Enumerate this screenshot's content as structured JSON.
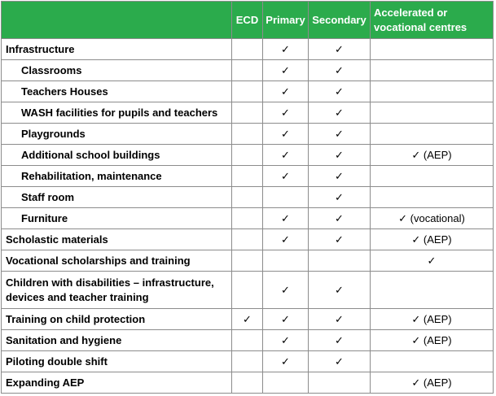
{
  "headers": {
    "blank": "",
    "ecd": "ECD",
    "primary": "Primary",
    "secondary": "Secondary",
    "accelerated": "Accelerated or vocational centres"
  },
  "rows": [
    {
      "label": "Infrastructure",
      "indent": false,
      "ecd": "",
      "primary": "✓",
      "secondary": "✓",
      "accelerated": ""
    },
    {
      "label": "Classrooms",
      "indent": true,
      "ecd": "",
      "primary": "✓",
      "secondary": "✓",
      "accelerated": ""
    },
    {
      "label": "Teachers Houses",
      "indent": true,
      "ecd": "",
      "primary": "✓",
      "secondary": "✓",
      "accelerated": ""
    },
    {
      "label": "WASH facilities for pupils and teachers",
      "indent": true,
      "ecd": "",
      "primary": "✓",
      "secondary": "✓",
      "accelerated": ""
    },
    {
      "label": "Playgrounds",
      "indent": true,
      "ecd": "",
      "primary": "✓",
      "secondary": "✓",
      "accelerated": ""
    },
    {
      "label": "Additional school buildings",
      "indent": true,
      "ecd": "",
      "primary": "✓",
      "secondary": "✓",
      "accelerated": "✓ (AEP)"
    },
    {
      "label": "Rehabilitation, maintenance",
      "indent": true,
      "ecd": "",
      "primary": "✓",
      "secondary": "✓",
      "accelerated": ""
    },
    {
      "label": "Staff room",
      "indent": true,
      "ecd": "",
      "primary": "",
      "secondary": "✓",
      "accelerated": ""
    },
    {
      "label": "Furniture",
      "indent": true,
      "ecd": "",
      "primary": "✓",
      "secondary": "✓",
      "accelerated": "✓ (vocational)"
    },
    {
      "label": "Scholastic materials",
      "indent": false,
      "ecd": "",
      "primary": "✓",
      "secondary": "✓",
      "accelerated": "✓ (AEP)"
    },
    {
      "label": "Vocational scholarships and training",
      "indent": false,
      "ecd": "",
      "primary": "",
      "secondary": "",
      "accelerated": "✓"
    },
    {
      "label": "Children with disabilities – infrastructure, devices and teacher training",
      "indent": false,
      "tall": true,
      "ecd": "",
      "primary": "✓",
      "secondary": "✓",
      "accelerated": ""
    },
    {
      "label": "Training on child protection",
      "indent": false,
      "ecd": "✓",
      "primary": "✓",
      "secondary": "✓",
      "accelerated": "✓ (AEP)"
    },
    {
      "label": "Sanitation and hygiene",
      "indent": false,
      "ecd": "",
      "primary": "✓",
      "secondary": "✓",
      "accelerated": "✓ (AEP)"
    },
    {
      "label": "Piloting double shift",
      "indent": false,
      "ecd": "",
      "primary": "✓",
      "secondary": "✓",
      "accelerated": ""
    },
    {
      "label": "Expanding AEP",
      "indent": false,
      "ecd": "",
      "primary": "",
      "secondary": "",
      "accelerated": "✓ (AEP)"
    }
  ],
  "colors": {
    "header_bg": "#2bab4c",
    "header_text": "#ffffff",
    "border": "#8c8c8c"
  }
}
